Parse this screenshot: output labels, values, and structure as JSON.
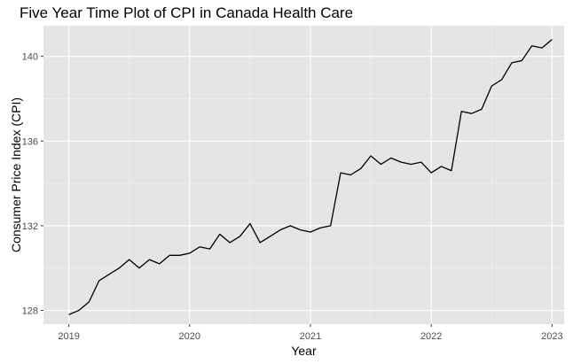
{
  "chart_data": {
    "type": "line",
    "title": "Five Year Time Plot of CPI in Canada Health Care",
    "xlabel": "Year",
    "ylabel": "Consumer Price Index (CPI)",
    "xlim": [
      2018.79,
      2023.1
    ],
    "ylim": [
      127.35,
      141.45
    ],
    "x_ticks": [
      2019,
      2020,
      2021,
      2022,
      2023
    ],
    "x_tick_labels": [
      "2019",
      "2020",
      "2021",
      "2022",
      "2023"
    ],
    "y_ticks": [
      128,
      132,
      136,
      140
    ],
    "y_tick_labels": [
      "128",
      "132",
      "136",
      "140"
    ],
    "grid": true,
    "panel_background": "#e5e5e5",
    "line_color": "#000000",
    "series": [
      {
        "x": [
          2019.0,
          2019.083,
          2019.167,
          2019.25,
          2019.333,
          2019.417,
          2019.5,
          2019.583,
          2019.667,
          2019.75,
          2019.833,
          2019.917,
          2020.0,
          2020.083,
          2020.167,
          2020.25,
          2020.333,
          2020.417,
          2020.5,
          2020.583,
          2020.667,
          2020.75,
          2020.833,
          2020.917,
          2021.0,
          2021.083,
          2021.167,
          2021.25,
          2021.333,
          2021.417,
          2021.5,
          2021.583,
          2021.667,
          2021.75,
          2021.833,
          2021.917,
          2022.0,
          2022.083,
          2022.167,
          2022.25,
          2022.333,
          2022.417,
          2022.5,
          2022.583,
          2022.667,
          2022.75,
          2022.833,
          2022.917,
          2023.0
        ],
        "y": [
          127.8,
          128.0,
          128.4,
          129.4,
          129.7,
          130.0,
          130.4,
          130.0,
          130.4,
          130.2,
          130.6,
          130.6,
          130.7,
          131.0,
          130.9,
          131.6,
          131.2,
          131.5,
          132.1,
          131.2,
          131.5,
          131.8,
          132.0,
          131.8,
          131.7,
          131.9,
          132.0,
          134.5,
          134.4,
          134.7,
          135.3,
          134.9,
          135.2,
          135.0,
          134.9,
          135.0,
          134.5,
          134.8,
          134.6,
          137.4,
          137.3,
          137.5,
          138.6,
          138.9,
          139.7,
          139.8,
          140.5,
          140.4,
          140.8
        ]
      }
    ]
  }
}
